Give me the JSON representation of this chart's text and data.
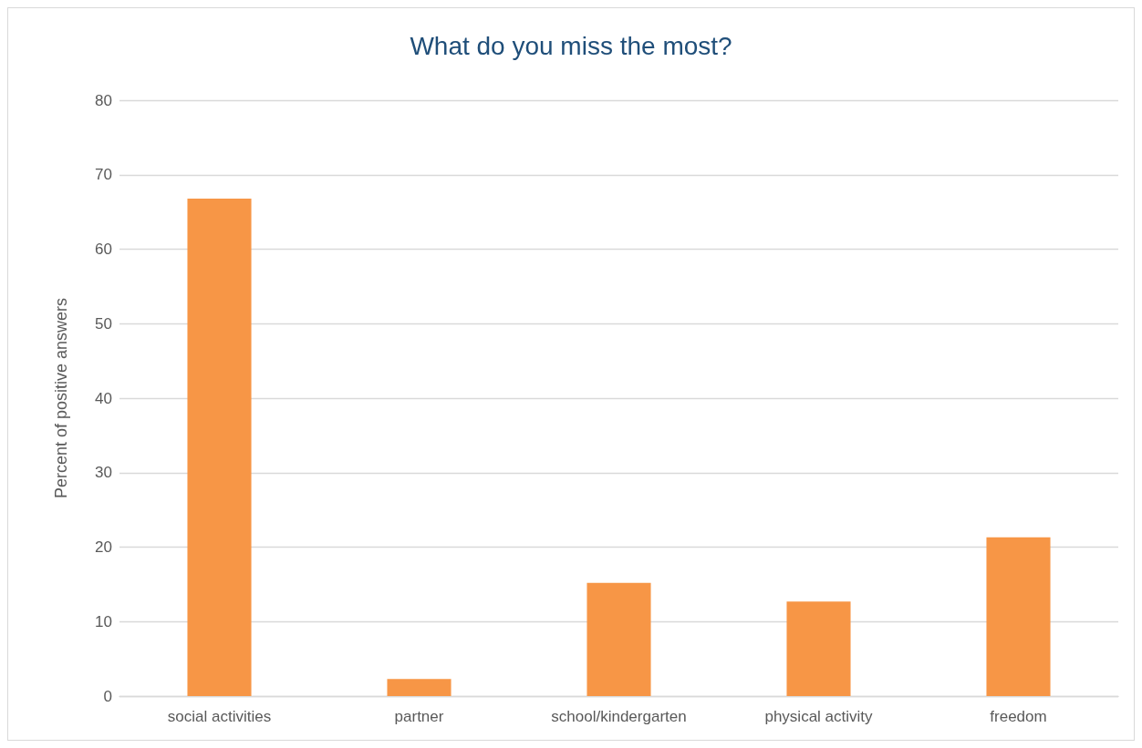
{
  "chart_data": {
    "type": "bar",
    "title": "What do you miss the most?",
    "ylabel": "Percent of positive answers",
    "categories": [
      "social activities",
      "partner",
      "school/kindergarten",
      "physical activity",
      "freedom"
    ],
    "values": [
      66.8,
      2.3,
      15.2,
      12.7,
      21.3
    ],
    "color": "#f79646",
    "ylim": [
      0,
      80
    ],
    "yticks": [
      0,
      10,
      20,
      30,
      40,
      50,
      60,
      70,
      80
    ],
    "grid": "y"
  }
}
